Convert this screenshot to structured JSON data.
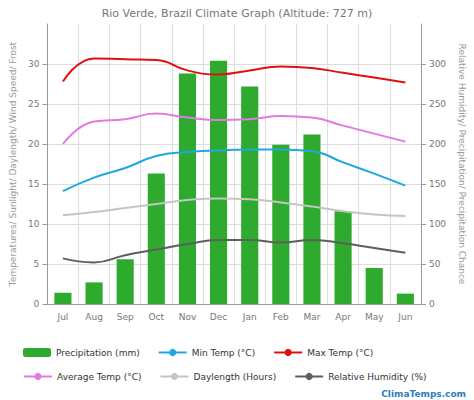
{
  "chart_data": {
    "type": "bar",
    "title": "Rio Verde, Brazil Climate Graph (Altitude: 727 m)",
    "y_label": "Temperatures/ Sunlight/ Daylength/ Wind Speed/ Frost",
    "y2_label": "Relative Humidity/ Precipitation/ Precipitation Chance",
    "annotations": [
      "ClimaTemps.com"
    ],
    "categories": [
      "Jul",
      "Aug",
      "Sep",
      "Oct",
      "Nov",
      "Dec",
      "Jan",
      "Feb",
      "Mar",
      "Apr",
      "May",
      "Jun"
    ],
    "ylim": [
      0,
      35
    ],
    "yticks": [
      0,
      5,
      10,
      15,
      20,
      25,
      30
    ],
    "y2lim": [
      0,
      350
    ],
    "y2ticks": [
      0,
      50,
      100,
      150,
      200,
      250,
      300
    ],
    "grid": true,
    "legend": "bottom",
    "series": [
      {
        "name": "Precipitation (mm)",
        "type": "bar",
        "axis": "y2",
        "color": "#2eaa2e",
        "values": [
          14,
          27,
          56,
          163,
          288,
          304,
          272,
          199,
          212,
          116,
          45,
          13
        ]
      },
      {
        "name": "Min Temp (°C)",
        "type": "line",
        "color": "#1ea8e0",
        "line_style": "solid",
        "values": [
          14.1,
          15.8,
          17.0,
          18.5,
          19.0,
          19.2,
          19.3,
          19.3,
          19.1,
          17.7,
          16.3,
          14.8
        ]
      },
      {
        "name": "Max Temp (°C)",
        "type": "line",
        "color": "#e01010",
        "line_style": "solid",
        "values": [
          27.8,
          30.7,
          30.6,
          30.5,
          29.2,
          28.7,
          29.2,
          29.7,
          29.5,
          28.9,
          28.3,
          27.7
        ]
      },
      {
        "name": "Average Temp (°C)",
        "type": "line",
        "color": "#e27ae2",
        "line_style": "solid",
        "values": [
          20.0,
          22.8,
          23.1,
          23.8,
          23.3,
          23.0,
          23.1,
          23.5,
          23.3,
          22.3,
          21.3,
          20.3
        ]
      },
      {
        "name": "Daylength (Hours)",
        "type": "line",
        "color": "#c4c4c4",
        "line_style": "solid",
        "values": [
          11.1,
          11.5,
          12.0,
          12.5,
          13.0,
          13.2,
          13.1,
          12.7,
          12.2,
          11.6,
          11.2,
          11.0
        ]
      },
      {
        "name": "Relative Humidity (%)",
        "type": "line",
        "axis": "y2",
        "color": "#5e5e5e",
        "line_style": "solid",
        "values": [
          57,
          52,
          61,
          68,
          75,
          80,
          80,
          77,
          80,
          76,
          70,
          64
        ]
      }
    ]
  }
}
